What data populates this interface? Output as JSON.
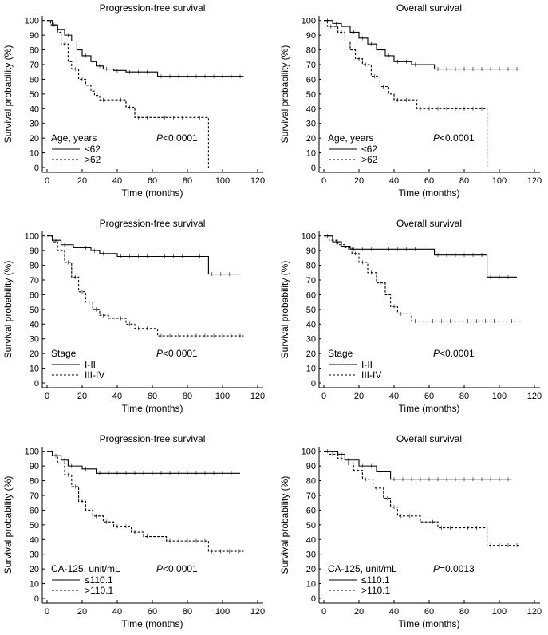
{
  "chart_data": [
    {
      "type": "line",
      "title": "Progression-free survival",
      "xlabel": "Time (months)",
      "ylabel": "Survival probability (%)",
      "xlim": [
        0,
        120
      ],
      "ylim": [
        0,
        100
      ],
      "xticks": [
        "0",
        "20",
        "40",
        "60",
        "80",
        "100",
        "120"
      ],
      "yticks": [
        "0",
        "10",
        "20",
        "30",
        "40",
        "50",
        "60",
        "70",
        "80",
        "90",
        "100"
      ],
      "legend_title": "Age, years",
      "p_prefix": "P",
      "p_value": "<0.0001",
      "series": [
        {
          "name": "≤62",
          "style": "solid",
          "end": 112,
          "steps": [
            [
              0,
              100
            ],
            [
              3,
              97
            ],
            [
              6,
              94
            ],
            [
              10,
              90
            ],
            [
              14,
              86
            ],
            [
              17,
              80
            ],
            [
              20,
              76
            ],
            [
              25,
              72
            ],
            [
              28,
              69
            ],
            [
              32,
              67
            ],
            [
              38,
              66
            ],
            [
              45,
              65
            ],
            [
              63,
              62
            ]
          ]
        },
        {
          "name": ">62",
          "style": "dashed",
          "end": 92,
          "steps": [
            [
              0,
              100
            ],
            [
              2,
              97
            ],
            [
              6,
              92
            ],
            [
              8,
              84
            ],
            [
              12,
              72
            ],
            [
              14,
              67
            ],
            [
              18,
              60
            ],
            [
              22,
              56
            ],
            [
              25,
              52
            ],
            [
              27,
              49
            ],
            [
              30,
              46
            ],
            [
              45,
              41
            ],
            [
              50,
              34
            ],
            [
              92,
              0
            ]
          ]
        }
      ]
    },
    {
      "type": "line",
      "title": "Overall survival",
      "xlabel": "Time (months)",
      "ylabel": "Survival probability (%)",
      "xlim": [
        0,
        120
      ],
      "ylim": [
        0,
        100
      ],
      "xticks": [
        "0",
        "20",
        "40",
        "60",
        "80",
        "100",
        "120"
      ],
      "yticks": [
        "0",
        "10",
        "20",
        "30",
        "40",
        "50",
        "60",
        "70",
        "80",
        "90",
        "100"
      ],
      "legend_title": "Age, years",
      "p_prefix": "P",
      "p_value": "<0.0001",
      "series": [
        {
          "name": "≤62",
          "style": "solid",
          "end": 112,
          "steps": [
            [
              0,
              100
            ],
            [
              5,
              98
            ],
            [
              10,
              96
            ],
            [
              15,
              92
            ],
            [
              20,
              88
            ],
            [
              25,
              84
            ],
            [
              30,
              80
            ],
            [
              35,
              76
            ],
            [
              40,
              72
            ],
            [
              50,
              70
            ],
            [
              63,
              67
            ]
          ]
        },
        {
          "name": ">62",
          "style": "dashed",
          "end": 93,
          "steps": [
            [
              0,
              100
            ],
            [
              2,
              96
            ],
            [
              8,
              92
            ],
            [
              12,
              86
            ],
            [
              15,
              80
            ],
            [
              18,
              74
            ],
            [
              22,
              70
            ],
            [
              27,
              62
            ],
            [
              32,
              55
            ],
            [
              37,
              50
            ],
            [
              40,
              46
            ],
            [
              53,
              40
            ],
            [
              93,
              0
            ]
          ]
        }
      ]
    },
    {
      "type": "line",
      "title": "Progression-free survival",
      "xlabel": "Time (months)",
      "ylabel": "Survival probability (%)",
      "xlim": [
        0,
        120
      ],
      "ylim": [
        0,
        100
      ],
      "xticks": [
        "0",
        "20",
        "40",
        "60",
        "80",
        "100",
        "120"
      ],
      "yticks": [
        "0",
        "10",
        "20",
        "30",
        "40",
        "50",
        "60",
        "70",
        "80",
        "90",
        "100"
      ],
      "legend_title": "Stage",
      "p_prefix": "P",
      "p_value": "<0.0001",
      "series": [
        {
          "name": "I-II",
          "style": "solid",
          "end": 110,
          "steps": [
            [
              0,
              100
            ],
            [
              3,
              97
            ],
            [
              8,
              94
            ],
            [
              15,
              92
            ],
            [
              25,
              90
            ],
            [
              30,
              88
            ],
            [
              40,
              86
            ],
            [
              92,
              74
            ]
          ]
        },
        {
          "name": "III-IV",
          "style": "dashed",
          "end": 112,
          "steps": [
            [
              0,
              100
            ],
            [
              3,
              96
            ],
            [
              6,
              90
            ],
            [
              10,
              82
            ],
            [
              14,
              72
            ],
            [
              18,
              62
            ],
            [
              22,
              55
            ],
            [
              26,
              50
            ],
            [
              30,
              46
            ],
            [
              35,
              44
            ],
            [
              45,
              40
            ],
            [
              50,
              37
            ],
            [
              63,
              32
            ]
          ]
        }
      ]
    },
    {
      "type": "line",
      "title": "Overall survival",
      "xlabel": "Time (months)",
      "ylabel": "Survival probability (%)",
      "xlim": [
        0,
        120
      ],
      "ylim": [
        0,
        100
      ],
      "xticks": [
        "0",
        "20",
        "40",
        "60",
        "80",
        "100",
        "120"
      ],
      "yticks": [
        "0",
        "10",
        "20",
        "30",
        "40",
        "50",
        "60",
        "70",
        "80",
        "90",
        "100"
      ],
      "legend_title": "Stage",
      "p_prefix": "P",
      "p_value": "<0.0001",
      "series": [
        {
          "name": "I-II",
          "style": "solid",
          "end": 110,
          "steps": [
            [
              0,
              100
            ],
            [
              5,
              96
            ],
            [
              10,
              93
            ],
            [
              15,
              91
            ],
            [
              63,
              87
            ],
            [
              93,
              72
            ]
          ]
        },
        {
          "name": "III-IV",
          "style": "dashed",
          "end": 112,
          "steps": [
            [
              0,
              100
            ],
            [
              3,
              97
            ],
            [
              8,
              94
            ],
            [
              12,
              92
            ],
            [
              16,
              88
            ],
            [
              20,
              82
            ],
            [
              25,
              75
            ],
            [
              30,
              68
            ],
            [
              35,
              60
            ],
            [
              38,
              52
            ],
            [
              42,
              47
            ],
            [
              50,
              42
            ]
          ]
        }
      ]
    },
    {
      "type": "line",
      "title": "Progression-free survival",
      "xlabel": "Time (months)",
      "ylabel": "Survival probability (%)",
      "xlim": [
        0,
        120
      ],
      "ylim": [
        0,
        100
      ],
      "xticks": [
        "0",
        "20",
        "40",
        "60",
        "80",
        "100",
        "120"
      ],
      "yticks": [
        "0",
        "10",
        "20",
        "30",
        "40",
        "50",
        "60",
        "70",
        "80",
        "90",
        "100"
      ],
      "legend_title": "CA-125, unit/mL",
      "p_prefix": "P",
      "p_value": "<0.0001",
      "series": [
        {
          "name": "≤110.1",
          "style": "solid",
          "end": 110,
          "steps": [
            [
              0,
              100
            ],
            [
              3,
              97
            ],
            [
              8,
              94
            ],
            [
              12,
              90
            ],
            [
              20,
              88
            ],
            [
              28,
              85
            ]
          ]
        },
        {
          "name": ">110.1",
          "style": "dashed",
          "end": 112,
          "steps": [
            [
              0,
              100
            ],
            [
              3,
              97
            ],
            [
              6,
              92
            ],
            [
              10,
              84
            ],
            [
              14,
              76
            ],
            [
              18,
              66
            ],
            [
              22,
              60
            ],
            [
              26,
              56
            ],
            [
              32,
              52
            ],
            [
              38,
              49
            ],
            [
              48,
              45
            ],
            [
              55,
              42
            ],
            [
              68,
              39
            ],
            [
              92,
              32
            ]
          ]
        }
      ]
    },
    {
      "type": "line",
      "title": "Overall survival",
      "xlabel": "Time (months)",
      "ylabel": "Survival probability (%)",
      "xlim": [
        0,
        120
      ],
      "ylim": [
        0,
        100
      ],
      "xticks": [
        "0",
        "20",
        "40",
        "60",
        "80",
        "100",
        "120"
      ],
      "yticks": [
        "0",
        "10",
        "20",
        "30",
        "40",
        "50",
        "60",
        "70",
        "80",
        "90",
        "100"
      ],
      "legend_title": "CA-125, unit/mL",
      "p_prefix": "P",
      "p_value": "=0.0013",
      "series": [
        {
          "name": "≤110.1",
          "style": "solid",
          "end": 107,
          "steps": [
            [
              0,
              100
            ],
            [
              8,
              98
            ],
            [
              12,
              94
            ],
            [
              20,
              90
            ],
            [
              30,
              86
            ],
            [
              38,
              81
            ]
          ]
        },
        {
          "name": ">110.1",
          "style": "dashed",
          "end": 112,
          "steps": [
            [
              0,
              100
            ],
            [
              3,
              98
            ],
            [
              8,
              95
            ],
            [
              12,
              92
            ],
            [
              17,
              87
            ],
            [
              22,
              81
            ],
            [
              28,
              75
            ],
            [
              34,
              68
            ],
            [
              38,
              62
            ],
            [
              42,
              56
            ],
            [
              55,
              52
            ],
            [
              65,
              48
            ],
            [
              93,
              36
            ]
          ]
        }
      ]
    }
  ]
}
